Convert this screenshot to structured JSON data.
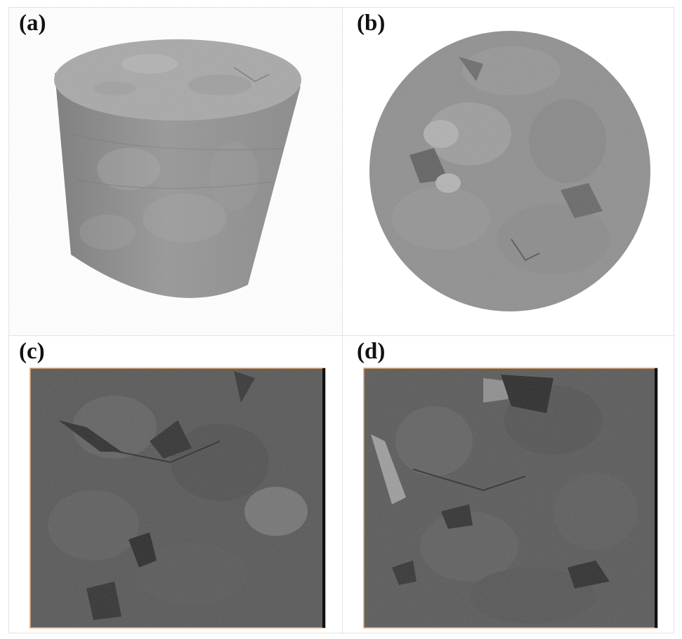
{
  "panels": [
    {
      "id": "a",
      "label": "(a)",
      "content": "3d-cylinder-render"
    },
    {
      "id": "b",
      "label": "(b)",
      "content": "circular-cross-section"
    },
    {
      "id": "c",
      "label": "(c)",
      "content": "square-slice"
    },
    {
      "id": "d",
      "label": "(d)",
      "content": "square-slice"
    }
  ],
  "colors": {
    "background": "#ffffff",
    "divider": "#e3e3e3",
    "rock_mid_gray": "#8a8a8a",
    "rock_light_gray": "#a8a8a8",
    "slice_dark_gray": "#4e4e4e",
    "slice_frame_orange": "#e0a060",
    "label_text": "#111111"
  }
}
